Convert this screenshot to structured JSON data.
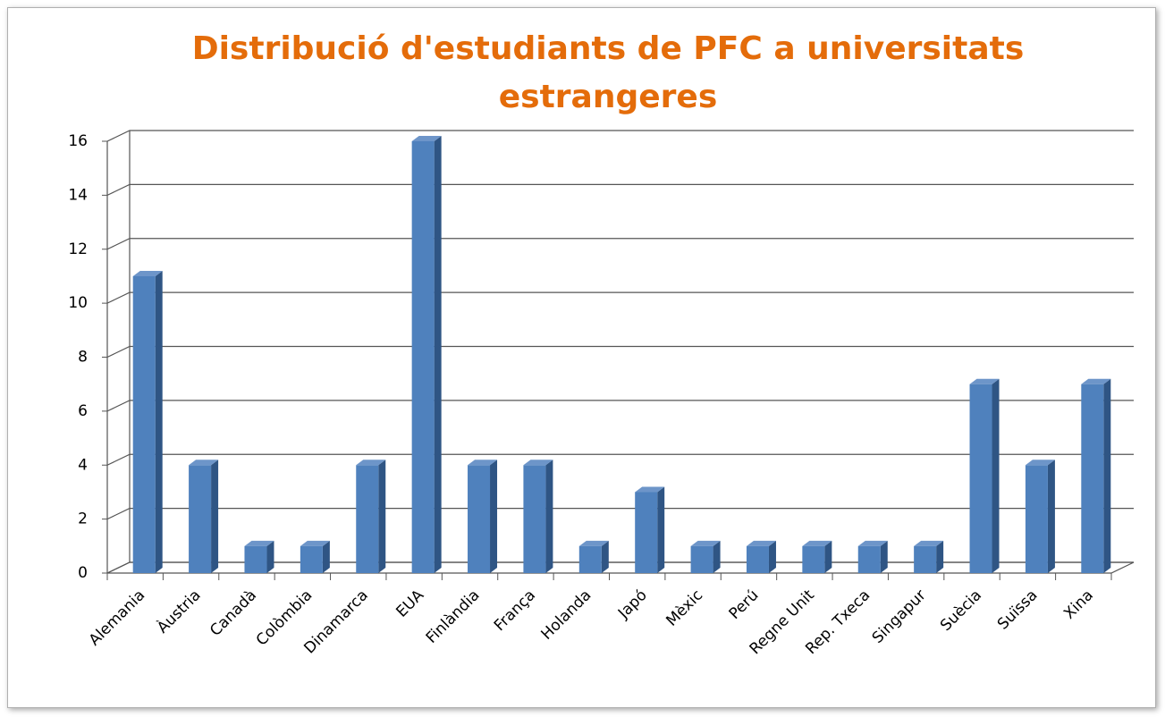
{
  "chart_data": {
    "type": "bar3d",
    "title": "Distribució d'estudiants de PFC a universitats estrangeres",
    "categories": [
      "Alemania",
      "Àustria",
      "Canadà",
      "Colòmbia",
      "Dinamarca",
      "EUA",
      "Finlàndia",
      "França",
      "Holanda",
      "Japó",
      "Mèxic",
      "Perú",
      "Regne Unit",
      "Rep. Txeca",
      "Singapur",
      "Suècia",
      "Suïssa",
      "Xina"
    ],
    "values": [
      11,
      4,
      1,
      1,
      4,
      16,
      4,
      4,
      1,
      3,
      1,
      1,
      1,
      1,
      1,
      7,
      4,
      7
    ],
    "color": "#4f81bd",
    "ylim": [
      0,
      16
    ],
    "yticks": [
      0,
      2,
      4,
      6,
      8,
      10,
      12,
      14,
      16
    ],
    "grid": true
  }
}
